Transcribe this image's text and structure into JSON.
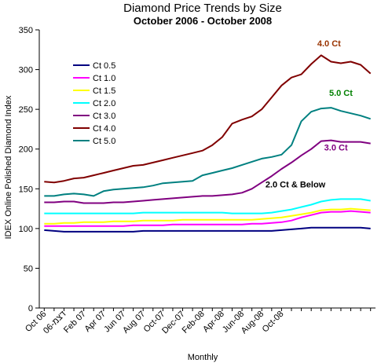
{
  "chart_data": {
    "type": "line",
    "title": "Diamond Price Trends by Size",
    "subtitle": "October 2006 - October 2008",
    "xlabel": "Monthly",
    "ylabel": "IDEX Online Polished Diamond Index",
    "ylim": [
      0,
      350
    ],
    "yticks": [
      0,
      50,
      100,
      150,
      200,
      250,
      300,
      350
    ],
    "xtick_labels": [
      "Oct 06",
      "06-דצמ",
      "Feb 07",
      "Apr 07",
      "Jun 07",
      "Aug 07",
      "Oct-07",
      "Dec-07",
      "Feb-08",
      "Apr-08",
      "Jun-08",
      "Aug-08",
      "Oct-08"
    ],
    "grid": false,
    "legend_position": "upper-left",
    "series": [
      {
        "name": "Ct 0.5",
        "color": "#000080",
        "values": [
          98,
          97,
          96,
          96,
          96,
          96,
          96,
          96,
          96,
          96,
          97,
          97,
          97,
          97,
          97,
          97,
          97,
          97,
          97,
          97,
          97,
          97,
          97,
          97,
          98,
          99,
          100,
          101,
          101,
          101,
          101,
          101,
          101,
          100
        ]
      },
      {
        "name": "Ct 1.0",
        "color": "#ff00ff",
        "values": [
          103,
          103,
          103,
          103,
          103,
          103,
          103,
          103,
          103,
          104,
          104,
          104,
          104,
          105,
          105,
          105,
          105,
          105,
          105,
          105,
          105,
          106,
          106,
          107,
          108,
          110,
          114,
          117,
          120,
          121,
          121,
          122,
          121,
          120
        ]
      },
      {
        "name": "Ct 1.5",
        "color": "#ffff00",
        "values": [
          106,
          106,
          107,
          107,
          108,
          108,
          108,
          109,
          109,
          109,
          110,
          110,
          110,
          110,
          111,
          111,
          111,
          111,
          111,
          111,
          111,
          111,
          112,
          113,
          114,
          116,
          118,
          120,
          123,
          124,
          124,
          125,
          124,
          123
        ]
      },
      {
        "name": "Ct 2.0",
        "color": "#00ffff",
        "values": [
          119,
          119,
          119,
          119,
          119,
          119,
          119,
          119,
          119,
          119,
          120,
          120,
          120,
          120,
          120,
          120,
          120,
          120,
          120,
          119,
          119,
          119,
          119,
          120,
          122,
          124,
          127,
          130,
          134,
          136,
          137,
          137,
          137,
          135
        ]
      },
      {
        "name": "Ct 3.0",
        "color": "#800080",
        "values": [
          133,
          133,
          134,
          134,
          132,
          132,
          132,
          133,
          133,
          134,
          135,
          136,
          137,
          138,
          139,
          140,
          141,
          141,
          142,
          143,
          145,
          150,
          158,
          166,
          175,
          183,
          192,
          200,
          210,
          211,
          209,
          209,
          209,
          207
        ]
      },
      {
        "name": "Ct 4.0",
        "color": "#800000",
        "values": [
          159,
          158,
          160,
          163,
          164,
          167,
          170,
          173,
          176,
          179,
          180,
          183,
          186,
          189,
          192,
          195,
          198,
          205,
          215,
          232,
          237,
          241,
          250,
          265,
          280,
          290,
          294,
          307,
          318,
          310,
          308,
          310,
          306,
          295
        ]
      },
      {
        "name": "Ct 5.0",
        "color": "#008080",
        "values": [
          141,
          141,
          143,
          144,
          143,
          141,
          147,
          149,
          150,
          151,
          152,
          154,
          157,
          158,
          159,
          160,
          167,
          170,
          173,
          176,
          180,
          184,
          188,
          190,
          193,
          205,
          235,
          247,
          251,
          252,
          248,
          245,
          242,
          238
        ]
      }
    ],
    "annotations": [
      {
        "text": "4.0 Ct",
        "color": "#993300",
        "x": 28.8,
        "y": 329
      },
      {
        "text": "5.0 Ct",
        "color": "#008000",
        "x": 30.0,
        "y": 267
      },
      {
        "text": "3.0 Ct",
        "color": "#800080",
        "x": 29.5,
        "y": 198
      },
      {
        "text": "2.0 Ct & Below",
        "color": "#000000",
        "x": 25.4,
        "y": 152
      }
    ]
  }
}
